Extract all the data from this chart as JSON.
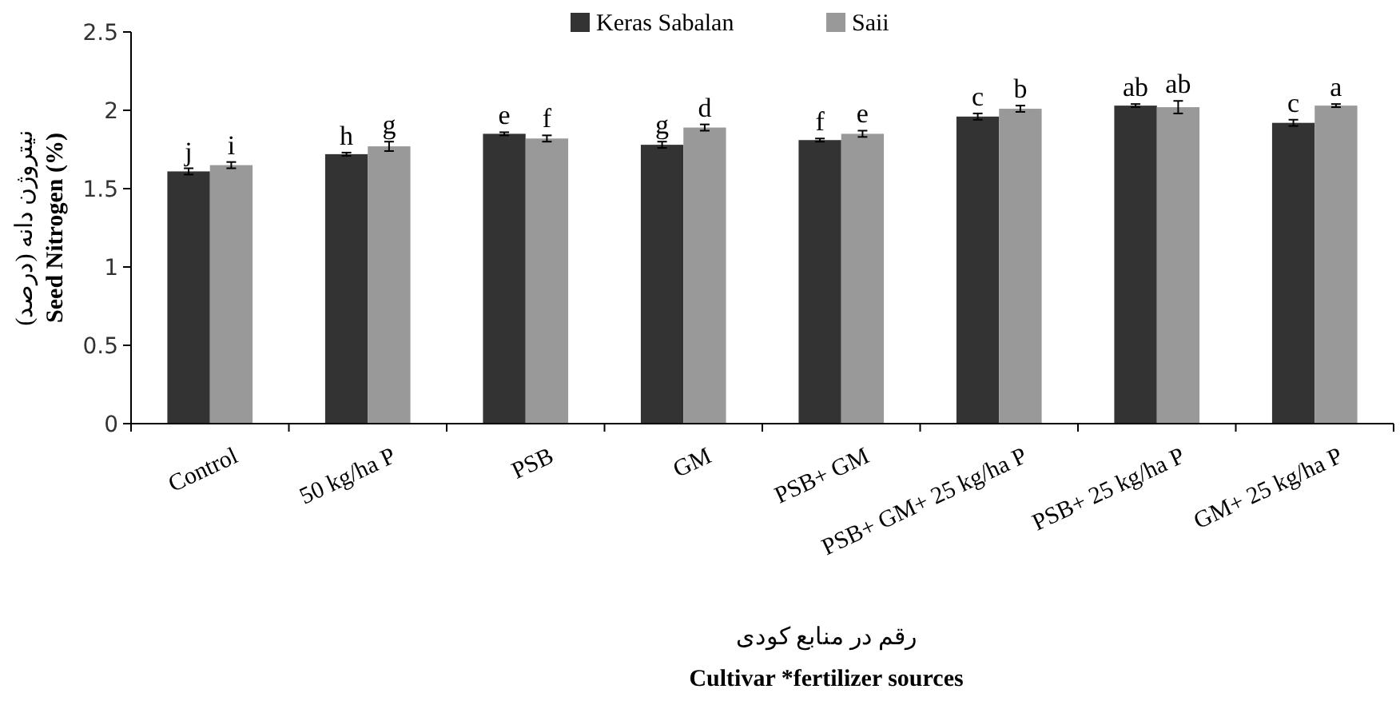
{
  "chart_data": {
    "type": "bar",
    "ylabel": "نیتروژن دانه (درصد)\nSeed Nitrogen (%)",
    "xlabel": "رقم در منابع کودی\nCultivar *fertilizer sources",
    "categories": [
      "Control",
      "50 kg/ha P",
      "PSB",
      "GM",
      "PSB+ GM",
      "PSB+ GM+ 25 kg/ha P",
      "PSB+ 25 kg/ha P",
      "GM+ 25 kg/ha P"
    ],
    "series": [
      {
        "name": "Keras Sabalan",
        "color": "#333333",
        "values": [
          1.61,
          1.72,
          1.85,
          1.78,
          1.81,
          1.96,
          2.03,
          1.92
        ],
        "errors": [
          0.02,
          0.01,
          0.01,
          0.02,
          0.01,
          0.02,
          0.01,
          0.02
        ],
        "value_labels": [
          "j",
          "h",
          "e",
          "g",
          "f",
          "c",
          "ab",
          "c"
        ]
      },
      {
        "name": "Saii",
        "color": "#999999",
        "values": [
          1.65,
          1.77,
          1.82,
          1.89,
          1.85,
          2.01,
          2.02,
          2.03
        ],
        "errors": [
          0.02,
          0.03,
          0.02,
          0.02,
          0.02,
          0.02,
          0.04,
          0.01
        ],
        "value_labels": [
          "i",
          "g",
          "f",
          "d",
          "e",
          "b",
          "ab",
          "a"
        ]
      }
    ],
    "ylim": [
      0,
      2.5
    ],
    "yticks": [
      0,
      0.5,
      1,
      1.5,
      2,
      2.5
    ],
    "grid": false,
    "legend": "top"
  }
}
